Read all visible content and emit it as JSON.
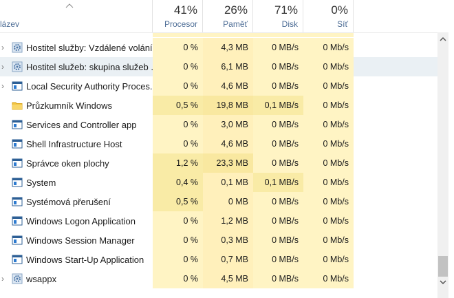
{
  "header": {
    "name": "lázev",
    "columns": [
      {
        "percent": "41%",
        "label": "Procesor"
      },
      {
        "percent": "26%",
        "label": "Paměť"
      },
      {
        "percent": "71%",
        "label": "Disk"
      },
      {
        "percent": "0%",
        "label": "Síť"
      }
    ]
  },
  "table": {
    "rows": [
      [
        "Hostitel služby: Vzdálené volání ...",
        "0 %",
        "4,3 MB",
        "0 MB/s",
        "0 Mb/s"
      ],
      [
        "Hostitel služeb: skupina služeb ...",
        "0 %",
        "6,1 MB",
        "0 MB/s",
        "0 Mb/s"
      ],
      [
        "Local Security Authority Proces...",
        "0 %",
        "4,6 MB",
        "0 MB/s",
        "0 Mb/s"
      ],
      [
        "Průzkumník Windows",
        "0,5 %",
        "19,8 MB",
        "0,1 MB/s",
        "0 Mb/s"
      ],
      [
        "Services and Controller app",
        "0 %",
        "3,0 MB",
        "0 MB/s",
        "0 Mb/s"
      ],
      [
        "Shell Infrastructure Host",
        "0 %",
        "4,6 MB",
        "0 MB/s",
        "0 Mb/s"
      ],
      [
        "Správce oken plochy",
        "1,2 %",
        "23,3 MB",
        "0 MB/s",
        "0 Mb/s"
      ],
      [
        "System",
        "0,4 %",
        "0,1 MB",
        "0,1 MB/s",
        "0 Mb/s"
      ],
      [
        "Systémová přerušení",
        "0,5 %",
        "0 MB",
        "0 MB/s",
        "0 Mb/s"
      ],
      [
        "Windows Logon Application",
        "0 %",
        "1,2 MB",
        "0 MB/s",
        "0 Mb/s"
      ],
      [
        "Windows Session Manager",
        "0 %",
        "0,3 MB",
        "0 MB/s",
        "0 Mb/s"
      ],
      [
        "Windows Start-Up Application",
        "0 %",
        "0,7 MB",
        "0 MB/s",
        "0 Mb/s"
      ],
      [
        "wsappx",
        "0 %",
        "4,5 MB",
        "0 MB/s",
        "0 Mb/s"
      ]
    ]
  }
}
